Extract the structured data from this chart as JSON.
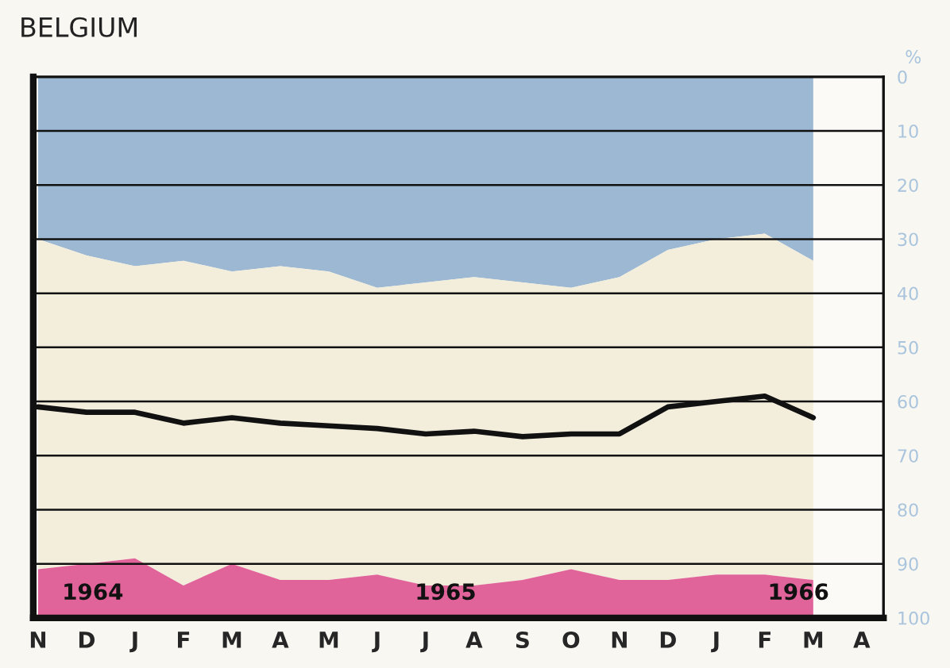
{
  "chart_data": {
    "type": "area",
    "title": "BELGIUM",
    "ylabel": "%",
    "stacked": true,
    "categories": [
      "N",
      "D",
      "J",
      "F",
      "M",
      "A",
      "M",
      "J",
      "J",
      "A",
      "S",
      "O",
      "N",
      "D",
      "J",
      "F",
      "M",
      "A"
    ],
    "series": [
      {
        "color": "#9db8d3",
        "values": [
          30,
          33,
          35,
          34,
          36,
          35,
          36,
          39,
          38,
          37,
          38,
          39,
          37,
          32,
          30,
          29,
          34,
          null
        ]
      },
      {
        "color": "#f3eedc",
        "values": [
          61,
          57,
          54,
          60,
          54,
          58,
          57,
          53,
          56,
          57,
          55,
          52,
          56,
          61,
          62,
          63,
          59,
          null
        ]
      },
      {
        "color": "#e0649a",
        "values": [
          9,
          10,
          11,
          6,
          10,
          7,
          7,
          8,
          6,
          6,
          7,
          9,
          7,
          7,
          8,
          8,
          7,
          null
        ]
      },
      {
        "type": "line",
        "color": "#111111",
        "values": [
          61,
          62,
          62,
          64,
          63,
          64,
          64.5,
          65,
          66,
          65.5,
          66.5,
          66,
          66,
          61,
          60,
          59,
          63,
          null
        ]
      }
    ],
    "ylim": [
      100,
      0
    ],
    "yticks": [
      0,
      10,
      20,
      30,
      40,
      50,
      60,
      70,
      80,
      90,
      100
    ],
    "grid": "y",
    "annotations": [
      "1964",
      "1965",
      "1966"
    ]
  }
}
